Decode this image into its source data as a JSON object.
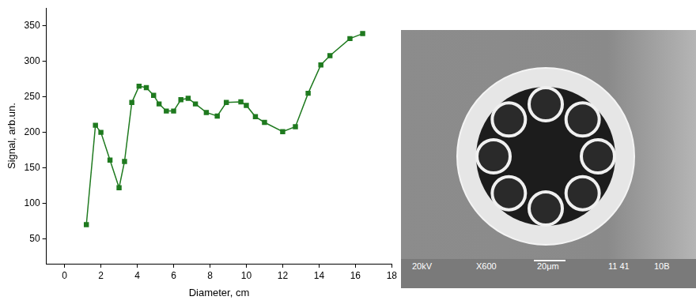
{
  "chart_data": {
    "type": "line",
    "x_label": "Diameter, cm",
    "y_label": "Signal, arb.un.",
    "x": [
      1.2,
      1.7,
      2.0,
      2.5,
      3.0,
      3.3,
      3.7,
      4.1,
      4.5,
      4.9,
      5.2,
      5.6,
      6.0,
      6.4,
      6.8,
      7.2,
      7.8,
      8.4,
      8.9,
      9.7,
      10.0,
      10.5,
      11.0,
      12.0,
      12.7,
      13.4,
      14.1,
      14.6,
      15.7,
      16.4
    ],
    "values": [
      70,
      210,
      200,
      161,
      122,
      159,
      242,
      265,
      263,
      252,
      240,
      230,
      230,
      246,
      248,
      240,
      228,
      223,
      242,
      243,
      238,
      222,
      214,
      201,
      208,
      255,
      295,
      308,
      332,
      339
    ],
    "color": "#1f7a1f",
    "marker": "square",
    "xlim": [
      -1,
      18
    ],
    "xticks": [
      0,
      2,
      4,
      6,
      8,
      10,
      12,
      14,
      16,
      18
    ],
    "ylim": [
      15,
      375
    ],
    "yticks": [
      50,
      100,
      150,
      200,
      250,
      300,
      350
    ],
    "grid": false
  },
  "image": {
    "texts": [
      "20kV",
      "X600",
      "20μm",
      "11 41",
      "10B"
    ]
  }
}
